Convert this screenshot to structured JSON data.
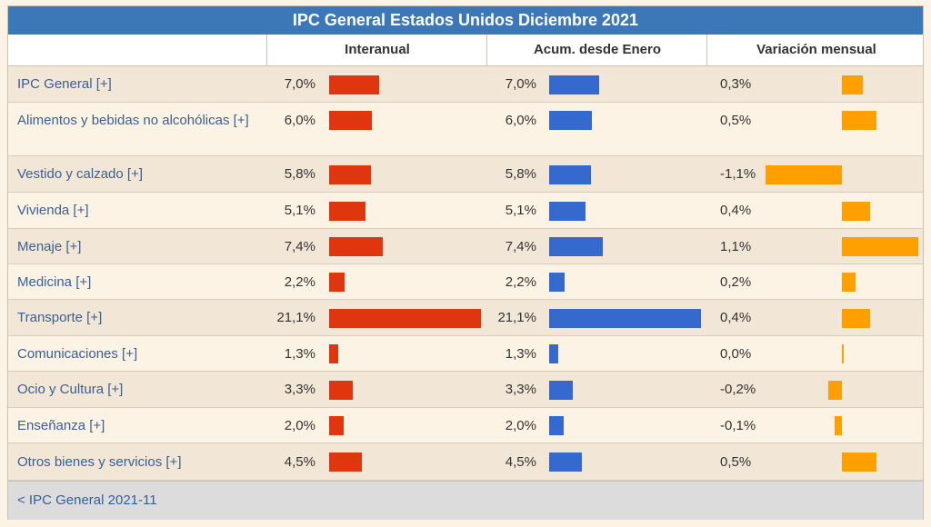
{
  "title": "IPC General Estados Unidos Diciembre 2021",
  "columns": {
    "interanual": "Interanual",
    "acumulado": "Acum. desde Enero",
    "mensual": "Variación mensual"
  },
  "colors": {
    "interanual": "#e0360f",
    "acumulado": "#3569cd",
    "mensual": "#ff9f00",
    "header": "#3c77b8"
  },
  "rows": [
    {
      "name": "IPC General [+]",
      "interanual": "7,0%",
      "acumulado": "7,0%",
      "mensual": "0,3%",
      "i": 7.0,
      "a": 7.0,
      "m": 0.3
    },
    {
      "name": "Alimentos y bebidas no alcohólicas [+]",
      "interanual": "6,0%",
      "acumulado": "6,0%",
      "mensual": "0,5%",
      "i": 6.0,
      "a": 6.0,
      "m": 0.5
    },
    {
      "name": "Vestido y calzado [+]",
      "interanual": "5,8%",
      "acumulado": "5,8%",
      "mensual": "-1,1%",
      "i": 5.8,
      "a": 5.8,
      "m": -1.1
    },
    {
      "name": "Vivienda [+]",
      "interanual": "5,1%",
      "acumulado": "5,1%",
      "mensual": "0,4%",
      "i": 5.1,
      "a": 5.1,
      "m": 0.4
    },
    {
      "name": "Menaje [+]",
      "interanual": "7,4%",
      "acumulado": "7,4%",
      "mensual": "1,1%",
      "i": 7.4,
      "a": 7.4,
      "m": 1.1
    },
    {
      "name": "Medicina [+]",
      "interanual": "2,2%",
      "acumulado": "2,2%",
      "mensual": "0,2%",
      "i": 2.2,
      "a": 2.2,
      "m": 0.2
    },
    {
      "name": "Transporte [+]",
      "interanual": "21,1%",
      "acumulado": "21,1%",
      "mensual": "0,4%",
      "i": 21.1,
      "a": 21.1,
      "m": 0.4
    },
    {
      "name": "Comunicaciones [+]",
      "interanual": "1,3%",
      "acumulado": "1,3%",
      "mensual": "0,0%",
      "i": 1.3,
      "a": 1.3,
      "m": 0.0
    },
    {
      "name": "Ocio y Cultura [+]",
      "interanual": "3,3%",
      "acumulado": "3,3%",
      "mensual": "-0,2%",
      "i": 3.3,
      "a": 3.3,
      "m": -0.2
    },
    {
      "name": "Enseñanza [+]",
      "interanual": "2,0%",
      "acumulado": "2,0%",
      "mensual": "-0,1%",
      "i": 2.0,
      "a": 2.0,
      "m": -0.1
    },
    {
      "name": "Otros bienes y servicios [+]",
      "interanual": "4,5%",
      "acumulado": "4,5%",
      "mensual": "0,5%",
      "i": 4.5,
      "a": 4.5,
      "m": 0.5
    }
  ],
  "footer": {
    "prev_link": "< IPC General 2021-11"
  }
}
